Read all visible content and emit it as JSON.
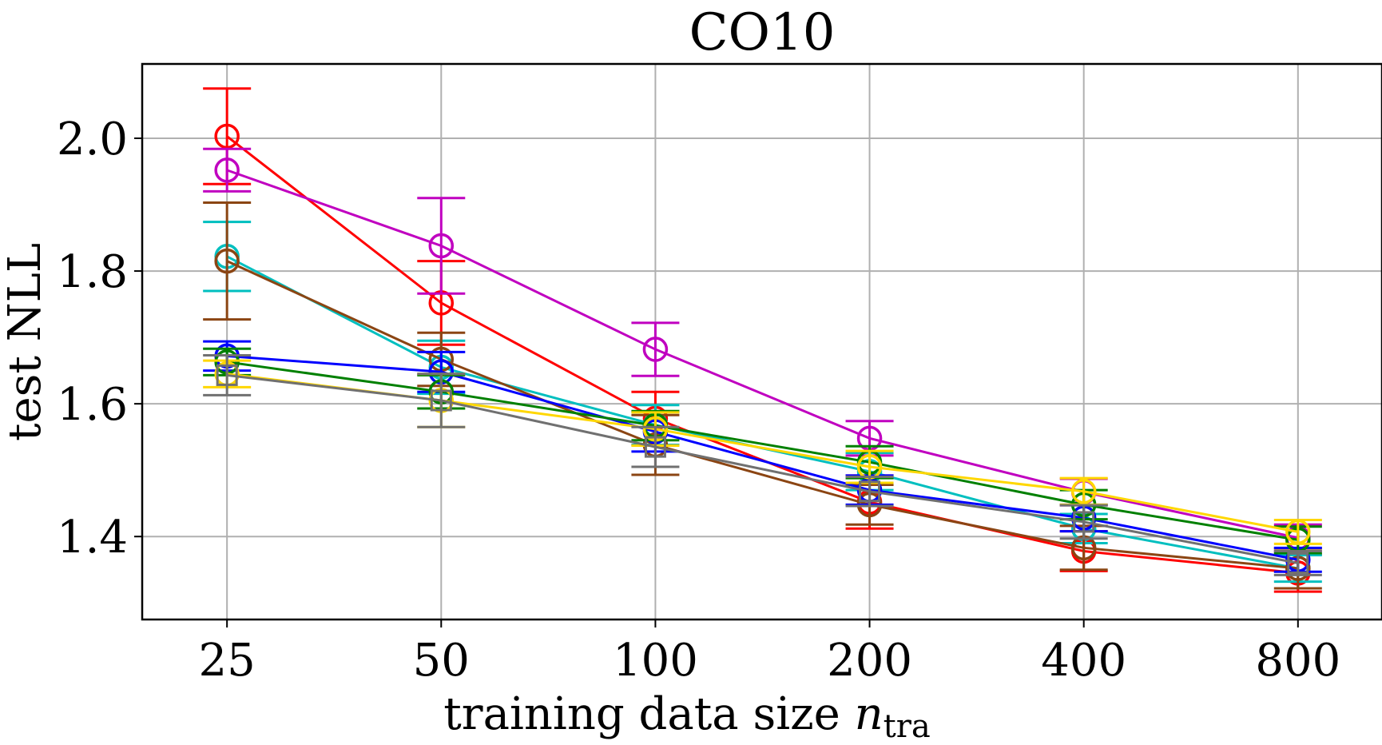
{
  "chart_data": {
    "type": "line",
    "title": "CO10",
    "xlabel_main": "training data size ",
    "xlabel_var": "n",
    "xlabel_sub": "tra",
    "ylabel": "test NLL",
    "x_scale": "log2",
    "x": [
      25,
      50,
      100,
      200,
      400,
      800
    ],
    "x_tick_labels": [
      "25",
      "50",
      "100",
      "200",
      "400",
      "800"
    ],
    "xlim": [
      19,
      1050
    ],
    "ylim": [
      1.275,
      2.112
    ],
    "y_ticks": [
      1.4,
      1.6,
      1.8,
      2.0
    ],
    "y_tick_labels": [
      "1.4",
      "1.6",
      "1.8",
      "2.0"
    ],
    "grid": true,
    "series": [
      {
        "name": "red",
        "color": "#ff0000",
        "marker": "circle",
        "values": [
          2.003,
          1.752,
          1.578,
          1.452,
          1.378,
          1.345
        ],
        "errors": [
          0.072,
          0.063,
          0.04,
          0.04,
          0.03,
          0.028
        ]
      },
      {
        "name": "magenta",
        "color": "#c000c0",
        "marker": "circle",
        "values": [
          1.952,
          1.838,
          1.682,
          1.548,
          1.467,
          1.398
        ],
        "errors": [
          0.032,
          0.072,
          0.04,
          0.026,
          0.02,
          0.02
        ]
      },
      {
        "name": "cyan",
        "color": "#00bfbf",
        "marker": "circle",
        "values": [
          1.822,
          1.655,
          1.568,
          1.498,
          1.412,
          1.352
        ],
        "errors": [
          0.052,
          0.04,
          0.03,
          0.028,
          0.022,
          0.02
        ]
      },
      {
        "name": "brown",
        "color": "#8b4513",
        "marker": "circle",
        "values": [
          1.815,
          1.667,
          1.538,
          1.448,
          1.383,
          1.352
        ],
        "errors": [
          0.088,
          0.04,
          0.045,
          0.03,
          0.033,
          0.03
        ]
      },
      {
        "name": "blue",
        "color": "#0000ff",
        "marker": "circle",
        "values": [
          1.672,
          1.648,
          1.558,
          1.47,
          1.428,
          1.365
        ],
        "errors": [
          0.022,
          0.03,
          0.03,
          0.022,
          0.02,
          0.018
        ]
      },
      {
        "name": "green",
        "color": "#008000",
        "marker": "circle",
        "values": [
          1.663,
          1.618,
          1.567,
          1.512,
          1.448,
          1.395
        ],
        "errors": [
          0.02,
          0.025,
          0.022,
          0.024,
          0.022,
          0.02
        ]
      },
      {
        "name": "gold",
        "color": "#ffd700",
        "marker": "circle",
        "values": [
          1.645,
          1.605,
          1.562,
          1.505,
          1.468,
          1.407
        ],
        "errors": [
          0.02,
          0.04,
          0.025,
          0.024,
          0.02,
          0.018
        ]
      },
      {
        "name": "gray",
        "color": "#707070",
        "marker": "square",
        "values": [
          1.643,
          1.605,
          1.535,
          1.468,
          1.422,
          1.36
        ],
        "errors": [
          0.03,
          0.04,
          0.03,
          0.022,
          0.025,
          0.018
        ]
      }
    ]
  }
}
